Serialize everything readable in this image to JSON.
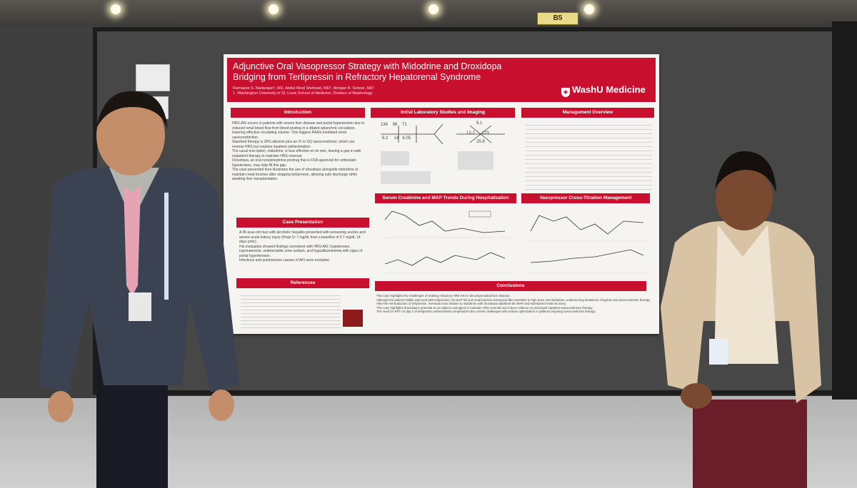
{
  "hall": {
    "booth_sign": "B5"
  },
  "poster": {
    "title": "Adjunctive Oral Vasopressor Strategy with Midodrine and Droxidopa Bridging from Terlipressin in Refractory Hepatorenal Syndrome",
    "authors": "Ramayee S. Nadarajan¹, MD, Abdul Moid Shehzad, MD¹, Morgan B. Schoer, MD¹",
    "affiliation": "1. Washington University in St. Louis School of Medicine, Division of Nephrology",
    "logo_text": "WashU Medicine",
    "sections": {
      "introduction": "Introduction",
      "initial_labs": "Initial Laboratory Studies and Imaging",
      "management": "Management Overview",
      "serum_map": "Serum Creatinine and MAP Trends During Hospitalization",
      "vasopressor": "Vasopressor Cross-Titration Management",
      "case_presentation": "Case Presentation",
      "references": "References",
      "conclusions": "Conclusions"
    },
    "intro_bullets": [
      "HRS-AKI occurs in patients with severe liver disease and portal hypertension due to reduced renal blood flow from blood pooling in a dilated splanchnic circulation, lowering effective circulating volume. This triggers RAAS-mediated renal vasoconstriction.",
      "Standard therapy is 25% albumin plus an IV or SQ vasoconstrictor, which can reverse HRS but requires inpatient administration.",
      "The usual oral option, midodrine, is less effective on its own, leaving a gap in safe outpatient therapy to maintain HRS reversal.",
      "Droxidopa, an oral norepinephrine prodrug that is FDA approved for orthostatic hypotension, may help fill this gap.",
      "The case presented here illustrates the use of droxidopa alongside midodrine to maintain renal function after stopping terlipressin, allowing safe discharge while awaiting liver transplantation."
    ],
    "case_bullets": [
      "A 45-year-old man with alcoholic hepatitis presented with worsening ascites and severe acute kidney injury (Peak Cr 7 mg/dL from a baseline of 0.7 mg/dL 14 days prior).",
      "His evaluation showed findings consistent with HRS-AKI: hypotension, hyponatremia, undetectable urine sodium, and hypoalbuminemia with signs of portal hypertension.",
      "Infectious and autoimmune causes of AKI were excluded."
    ],
    "labs": {
      "row1": [
        "134",
        "98",
        "71"
      ],
      "row2": [
        "6.2",
        "14",
        "6.05"
      ],
      "col2_top": "9.1",
      "col2_mid": [
        "13.2",
        "123"
      ],
      "col2_bot": "25.8"
    },
    "conclusions": [
      "This case highlights the challenges of treating refractory HRS-AKI in decompensated liver disease.",
      "Although the patient initially improved with terlipressin, his MAP fell and renal function worsened after transition to high dose oral midodrine, underscoring limitations of typical oral vasoconstrictor therapy.",
      "After the reintroduction of terlipressin, eventual cross titration to midodrine with droxidopa stabilized the MAP and maintained renal recovery.",
      "This case highlights droxidopa's potential as an adjunct oral agent to maintain HRS reversal and reduce reliance on prolonged inpatient vasoconstrictor therapy.",
      "The need for RRT on day 2 of terlipressin administration emphasizes the current challenges with volume optimization in patients requiring vasoconstrictor therapy."
    ]
  },
  "colors": {
    "washu_red": "#c8102e",
    "board": "#474747",
    "floor": "#c4c4c4"
  }
}
